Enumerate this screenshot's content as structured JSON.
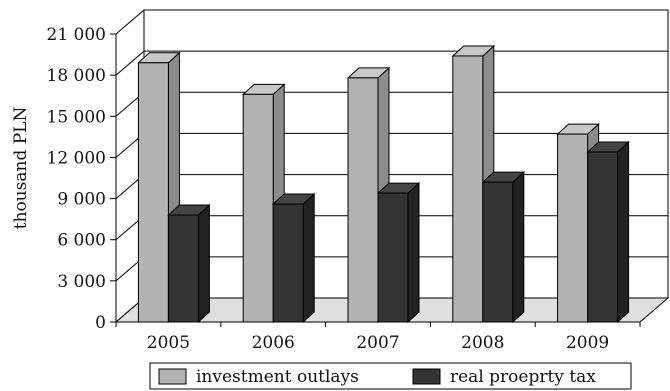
{
  "chart_data": {
    "type": "bar",
    "ylabel": "thousand PLN",
    "categories": [
      "2005",
      "2006",
      "2007",
      "2008",
      "2009"
    ],
    "ylim": [
      0,
      21000
    ],
    "yticks": [
      0,
      3000,
      6000,
      9000,
      12000,
      15000,
      18000,
      21000
    ],
    "ytick_labels": [
      "0",
      "3 000",
      "6 000",
      "9 000",
      "12 000",
      "15 000",
      "18 000",
      "21 000"
    ],
    "grid": true,
    "legend_position": "bottom",
    "series": [
      {
        "name": "investment outlays",
        "values": [
          18900,
          16600,
          17800,
          19400,
          13700
        ],
        "color": "#b3b3b3"
      },
      {
        "name": "real proeprty tax",
        "values": [
          7800,
          8600,
          9400,
          10200,
          12400
        ],
        "color": "#333333"
      }
    ]
  }
}
